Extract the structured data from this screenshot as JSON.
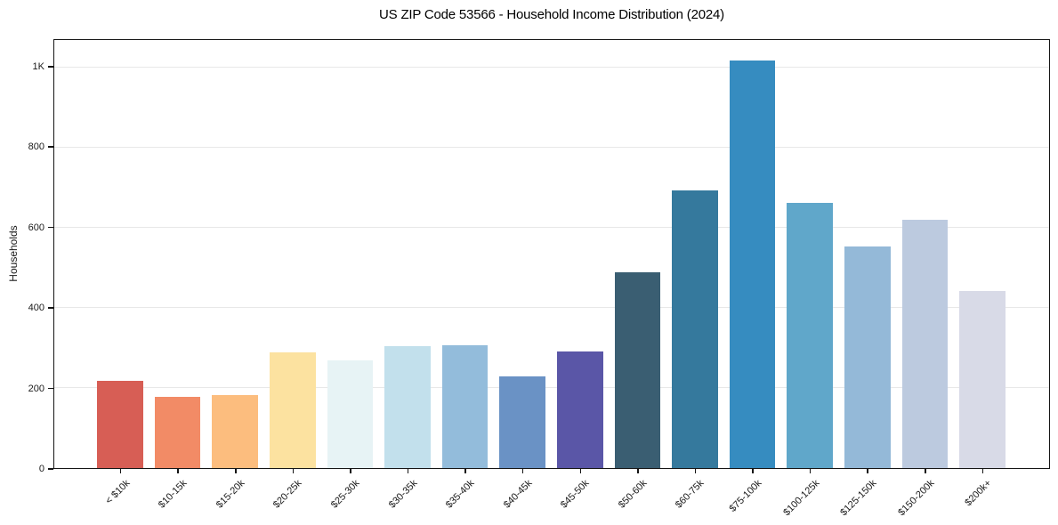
{
  "chart_data": {
    "type": "bar",
    "title": "US ZIP Code 53566 - Household Income Distribution (2024)",
    "xlabel": "",
    "ylabel": "Households",
    "categories": [
      "< $10k",
      "$10-15k",
      "$15-20k",
      "$20-25k",
      "$25-30k",
      "$30-35k",
      "$35-40k",
      "$40-45k",
      "$45-50k",
      "$50-60k",
      "$60-75k",
      "$75-100k",
      "$100-125k",
      "$125-150k",
      "$150-200k",
      "$200k+"
    ],
    "values": [
      217,
      177,
      183,
      288,
      269,
      305,
      307,
      229,
      291,
      488,
      692,
      1017,
      661,
      553,
      619,
      442
    ],
    "bar_colors": [
      "#d75e55",
      "#f28b66",
      "#fcbd7e",
      "#fce2a0",
      "#e7f3f5",
      "#c2e0ec",
      "#93bcdb",
      "#6a92c5",
      "#5a56a7",
      "#3a5e72",
      "#35799d",
      "#368cc0",
      "#60a7ca",
      "#94b9d8",
      "#bccadf",
      "#d8dae7"
    ],
    "yticks": [
      {
        "value": 0,
        "label": "0"
      },
      {
        "value": 200,
        "label": "200"
      },
      {
        "value": 400,
        "label": "400"
      },
      {
        "value": 600,
        "label": "600"
      },
      {
        "value": 800,
        "label": "800"
      },
      {
        "value": 1000,
        "label": "1K"
      }
    ],
    "ylim": [
      0,
      1068
    ],
    "xlim": [
      -1.17,
      16.17
    ],
    "bar_width": 0.8,
    "grid": "horizontal-only",
    "legend": "none",
    "x_tick_rotation": 45,
    "colors": {
      "background": "#ffffff",
      "gridline": "#e8e8e8",
      "spine": "#151515",
      "text": "#1a1a1a"
    }
  }
}
